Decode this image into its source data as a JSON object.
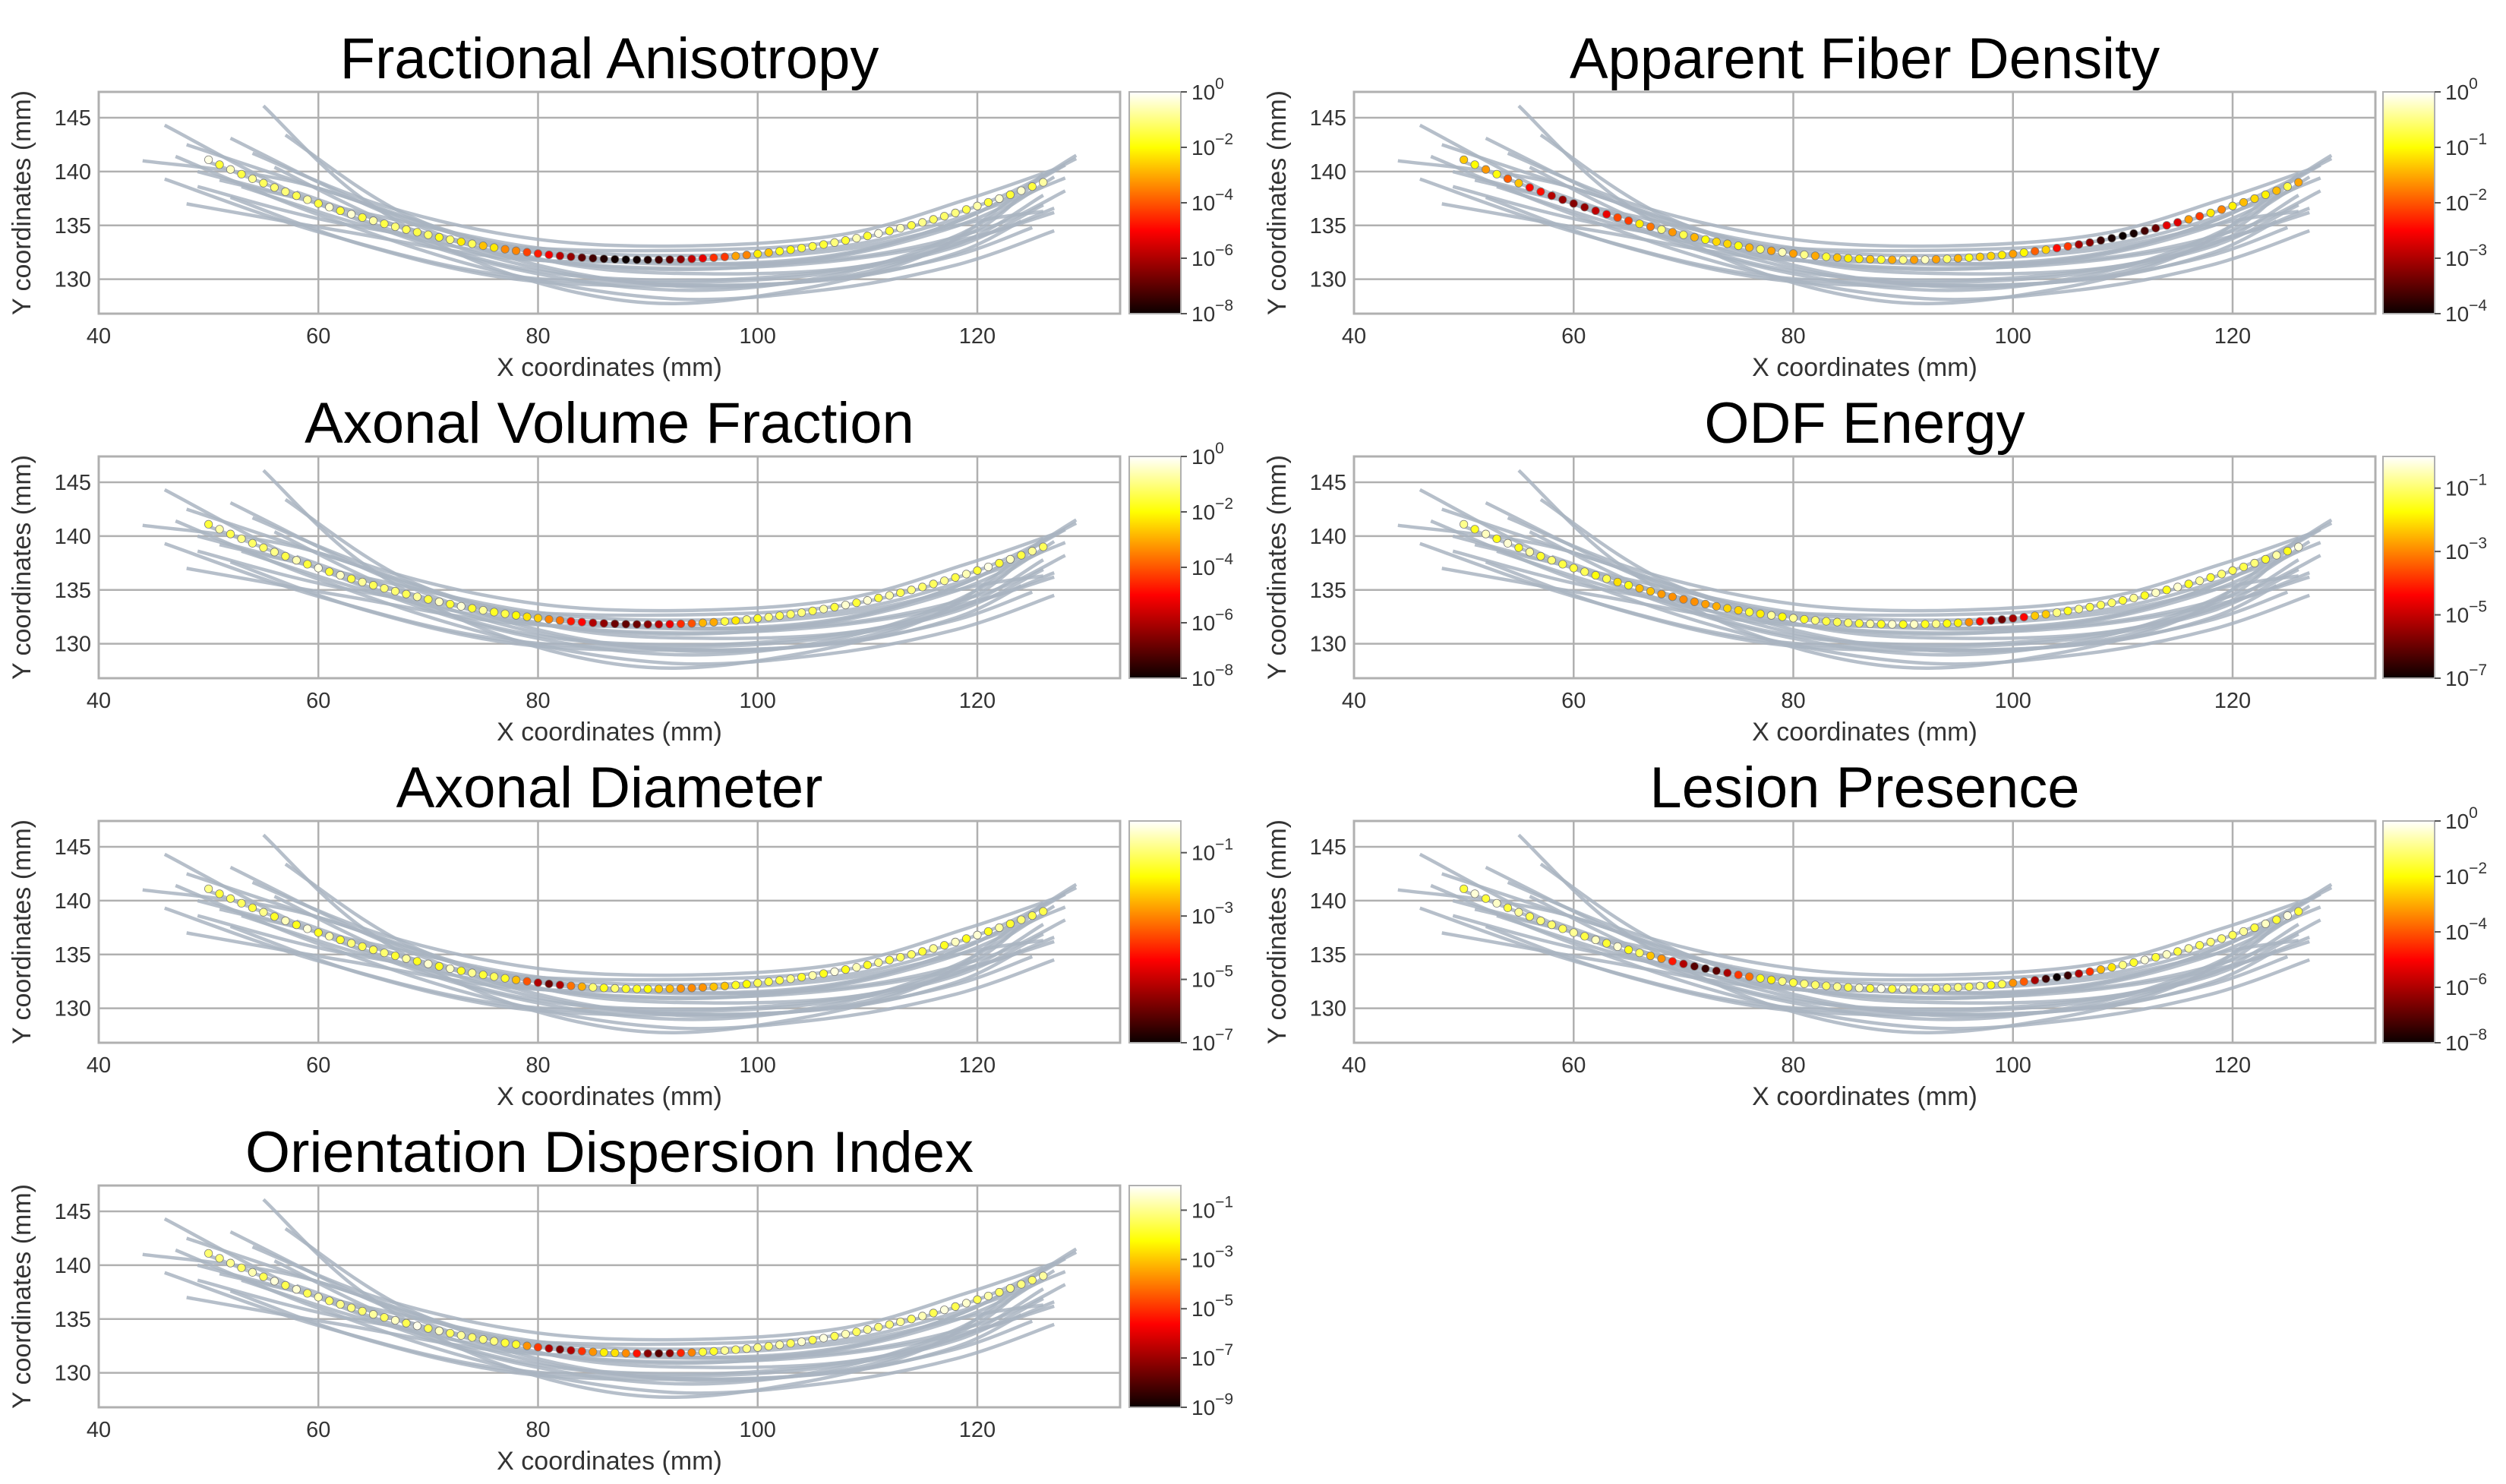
{
  "figure": {
    "panels": [
      "Fractional Anisotropy",
      "Apparent Fiber Density",
      "Axonal Volume Fraction",
      "ODF Energy",
      "Axonal Diameter",
      "Lesion Presence",
      "Orientation Dispersion Index"
    ]
  },
  "chart_data": [
    {
      "type": "scatter",
      "title": "Fractional Anisotropy",
      "xlabel": "X coordinates (mm)",
      "ylabel": "Y coordinates (mm)",
      "xlim": [
        40,
        133
      ],
      "ylim": [
        126.8,
        147.4
      ],
      "xticks": [
        "40",
        "60",
        "80",
        "100",
        "120"
      ],
      "yticks": [
        "130",
        "135",
        "140",
        "145"
      ],
      "colorbar": {
        "scale": "log",
        "cmap": "hot",
        "min_exp": -8,
        "max_exp": 0,
        "ticks": [
          {
            "base": "10",
            "exp": "0"
          },
          {
            "base": "10",
            "exp": "−2"
          },
          {
            "base": "10",
            "exp": "−4"
          },
          {
            "base": "10",
            "exp": "−6"
          },
          {
            "base": "10",
            "exp": "−8"
          }
        ]
      },
      "profile": {
        "x_start": 50,
        "x_end": 126,
        "n_points": 77,
        "low_regions": [
          [
            88,
            10,
            -8
          ]
        ]
      }
    },
    {
      "type": "scatter",
      "title": "Apparent Fiber Density",
      "xlabel": "X coordinates (mm)",
      "ylabel": "Y coordinates (mm)",
      "xlim": [
        40,
        133
      ],
      "ylim": [
        126.8,
        147.4
      ],
      "xticks": [
        "40",
        "60",
        "80",
        "100",
        "120"
      ],
      "yticks": [
        "130",
        "135",
        "140",
        "145"
      ],
      "colorbar": {
        "scale": "log",
        "cmap": "hot",
        "min_exp": -4,
        "max_exp": 0,
        "ticks": [
          {
            "base": "10",
            "exp": "0"
          },
          {
            "base": "10",
            "exp": "−1"
          },
          {
            "base": "10",
            "exp": "−2"
          },
          {
            "base": "10",
            "exp": "−3"
          },
          {
            "base": "10",
            "exp": "−4"
          }
        ]
      },
      "profile": {
        "x_start": 50,
        "x_end": 126,
        "n_points": 77,
        "low_regions": [
          [
            60,
            5,
            -3.3
          ],
          [
            110,
            6,
            -4
          ]
        ]
      }
    },
    {
      "type": "scatter",
      "title": "Axonal Volume Fraction",
      "xlabel": "X coordinates (mm)",
      "ylabel": "Y coordinates (mm)",
      "xlim": [
        40,
        133
      ],
      "ylim": [
        126.8,
        147.4
      ],
      "xticks": [
        "40",
        "60",
        "80",
        "100",
        "120"
      ],
      "yticks": [
        "130",
        "135",
        "140",
        "145"
      ],
      "colorbar": {
        "scale": "log",
        "cmap": "hot",
        "min_exp": -8,
        "max_exp": 0,
        "ticks": [
          {
            "base": "10",
            "exp": "0"
          },
          {
            "base": "10",
            "exp": "−2"
          },
          {
            "base": "10",
            "exp": "−4"
          },
          {
            "base": "10",
            "exp": "−6"
          },
          {
            "base": "10",
            "exp": "−8"
          }
        ]
      },
      "profile": {
        "x_start": 50,
        "x_end": 126,
        "n_points": 77,
        "low_regions": [
          [
            88,
            7,
            -7
          ]
        ]
      }
    },
    {
      "type": "scatter",
      "title": "ODF Energy",
      "xlabel": "X coordinates (mm)",
      "ylabel": "Y coordinates (mm)",
      "xlim": [
        40,
        133
      ],
      "ylim": [
        126.8,
        147.4
      ],
      "xticks": [
        "40",
        "60",
        "80",
        "100",
        "120"
      ],
      "yticks": [
        "130",
        "135",
        "140",
        "145"
      ],
      "colorbar": {
        "scale": "log",
        "cmap": "hot",
        "min_exp": -7,
        "max_exp": 0,
        "ticks": [
          {
            "base": "10",
            "exp": "−1"
          },
          {
            "base": "10",
            "exp": "−3"
          },
          {
            "base": "10",
            "exp": "−5"
          },
          {
            "base": "10",
            "exp": "−7"
          }
        ]
      },
      "profile": {
        "x_start": 50,
        "x_end": 126,
        "n_points": 77,
        "low_regions": [
          [
            99,
            3,
            -6
          ],
          [
            70,
            6,
            -3
          ]
        ]
      }
    },
    {
      "type": "scatter",
      "title": "Axonal Diameter",
      "xlabel": "X coordinates (mm)",
      "ylabel": "Y coordinates (mm)",
      "xlim": [
        40,
        133
      ],
      "ylim": [
        126.8,
        147.4
      ],
      "xticks": [
        "40",
        "60",
        "80",
        "100",
        "120"
      ],
      "yticks": [
        "130",
        "135",
        "140",
        "145"
      ],
      "colorbar": {
        "scale": "log",
        "cmap": "hot",
        "min_exp": -7,
        "max_exp": 0,
        "ticks": [
          {
            "base": "10",
            "exp": "−1"
          },
          {
            "base": "10",
            "exp": "−3"
          },
          {
            "base": "10",
            "exp": "−5"
          },
          {
            "base": "10",
            "exp": "−7"
          }
        ]
      },
      "profile": {
        "x_start": 50,
        "x_end": 126,
        "n_points": 77,
        "low_regions": [
          [
            81,
            2.5,
            -6
          ],
          [
            94,
            4,
            -3
          ]
        ]
      }
    },
    {
      "type": "scatter",
      "title": "Lesion Presence",
      "xlabel": "X coordinates (mm)",
      "ylabel": "Y coordinates (mm)",
      "xlim": [
        40,
        133
      ],
      "ylim": [
        126.8,
        147.4
      ],
      "xticks": [
        "40",
        "60",
        "80",
        "100",
        "120"
      ],
      "yticks": [
        "130",
        "135",
        "140",
        "145"
      ],
      "colorbar": {
        "scale": "log",
        "cmap": "hot",
        "min_exp": -8,
        "max_exp": 0,
        "ticks": [
          {
            "base": "10",
            "exp": "0"
          },
          {
            "base": "10",
            "exp": "−2"
          },
          {
            "base": "10",
            "exp": "−4"
          },
          {
            "base": "10",
            "exp": "−6"
          },
          {
            "base": "10",
            "exp": "−8"
          }
        ]
      },
      "profile": {
        "x_start": 50,
        "x_end": 126,
        "n_points": 77,
        "low_regions": [
          [
            72,
            4,
            -7.5
          ],
          [
            104,
            3.5,
            -8
          ]
        ]
      }
    },
    {
      "type": "scatter",
      "title": "Orientation Dispersion Index",
      "xlabel": "X coordinates (mm)",
      "ylabel": "Y coordinates (mm)",
      "xlim": [
        40,
        133
      ],
      "ylim": [
        126.8,
        147.4
      ],
      "xticks": [
        "40",
        "60",
        "80",
        "100",
        "120"
      ],
      "yticks": [
        "130",
        "135",
        "140",
        "145"
      ],
      "colorbar": {
        "scale": "log",
        "cmap": "hot",
        "min_exp": -9,
        "max_exp": 0,
        "ticks": [
          {
            "base": "10",
            "exp": "−1"
          },
          {
            "base": "10",
            "exp": "−3"
          },
          {
            "base": "10",
            "exp": "−5"
          },
          {
            "base": "10",
            "exp": "−7"
          },
          {
            "base": "10",
            "exp": "−9"
          }
        ]
      },
      "profile": {
        "x_start": 50,
        "x_end": 126,
        "n_points": 77,
        "low_regions": [
          [
            82,
            3,
            -7.5
          ],
          [
            91,
            3,
            -8
          ]
        ]
      }
    }
  ],
  "streamlines": {
    "x_range": [
      44,
      129
    ],
    "curves": [
      [
        [
          46,
          144.3
        ],
        [
          60,
          137.0
        ],
        [
          76,
          131.4
        ],
        [
          92,
          129.0
        ],
        [
          106,
          130.2
        ],
        [
          118,
          134.0
        ],
        [
          127,
          139.5
        ]
      ],
      [
        [
          48,
          142.5
        ],
        [
          62,
          137.8
        ],
        [
          78,
          132.8
        ],
        [
          92,
          131.4
        ],
        [
          106,
          132.0
        ],
        [
          118,
          135.3
        ],
        [
          128,
          140.6
        ]
      ],
      [
        [
          44,
          141.0
        ],
        [
          58,
          139.0
        ],
        [
          74,
          133.8
        ],
        [
          90,
          131.6
        ],
        [
          106,
          132.1
        ],
        [
          119,
          135.7
        ],
        [
          129,
          141.5
        ]
      ],
      [
        [
          49,
          140.0
        ],
        [
          62,
          136.5
        ],
        [
          78,
          132.2
        ],
        [
          92,
          130.9
        ],
        [
          106,
          131.9
        ],
        [
          118,
          134.9
        ],
        [
          126,
          138.6
        ]
      ],
      [
        [
          51,
          139.2
        ],
        [
          64,
          136.2
        ],
        [
          80,
          132.9
        ],
        [
          94,
          132.2
        ],
        [
          108,
          133.1
        ],
        [
          119,
          135.9
        ],
        [
          128,
          139.4
        ]
      ],
      [
        [
          48,
          137.0
        ],
        [
          62,
          134.5
        ],
        [
          78,
          131.9
        ],
        [
          94,
          131.8
        ],
        [
          108,
          132.8
        ],
        [
          120,
          135.4
        ],
        [
          126,
          136.3
        ]
      ],
      [
        [
          55,
          146.1
        ],
        [
          64,
          137.5
        ],
        [
          76,
          131.0
        ],
        [
          90,
          127.8
        ],
        [
          104,
          129.1
        ],
        [
          116,
          132.6
        ],
        [
          125,
          139.0
        ]
      ],
      [
        [
          52,
          143.1
        ],
        [
          66,
          136.2
        ],
        [
          80,
          131.3
        ],
        [
          94,
          129.3
        ],
        [
          108,
          130.3
        ],
        [
          119,
          133.6
        ],
        [
          127,
          136.2
        ]
      ],
      [
        [
          47,
          141.4
        ],
        [
          60,
          136.0
        ],
        [
          76,
          130.8
        ],
        [
          92,
          128.2
        ],
        [
          106,
          129.0
        ],
        [
          118,
          131.3
        ],
        [
          127,
          134.5
        ]
      ],
      [
        [
          50,
          140.9
        ],
        [
          64,
          135.5
        ],
        [
          78,
          131.1
        ],
        [
          92,
          129.9
        ],
        [
          106,
          130.7
        ],
        [
          118,
          133.2
        ],
        [
          126,
          137.8
        ]
      ],
      [
        [
          53,
          138.6
        ],
        [
          66,
          134.5
        ],
        [
          80,
          131.8
        ],
        [
          94,
          131.0
        ],
        [
          108,
          131.8
        ],
        [
          120,
          134.0
        ],
        [
          127,
          136.6
        ]
      ],
      [
        [
          56,
          140.4
        ],
        [
          68,
          134.6
        ],
        [
          82,
          130.6
        ],
        [
          96,
          129.4
        ],
        [
          108,
          130.2
        ],
        [
          118,
          132.2
        ],
        [
          125,
          134.8
        ]
      ],
      [
        [
          58,
          138.1
        ],
        [
          70,
          134.2
        ],
        [
          84,
          132.1
        ],
        [
          98,
          131.4
        ],
        [
          110,
          132.2
        ],
        [
          121,
          134.8
        ],
        [
          128,
          138.2
        ]
      ],
      [
        [
          49,
          138.6
        ],
        [
          62,
          135.2
        ],
        [
          78,
          133.0
        ],
        [
          94,
          132.7
        ],
        [
          108,
          133.6
        ],
        [
          120,
          136.8
        ],
        [
          129,
          141.2
        ]
      ],
      [
        [
          54,
          141.7
        ],
        [
          66,
          136.8
        ],
        [
          80,
          133.7
        ],
        [
          94,
          133.1
        ],
        [
          108,
          134.2
        ],
        [
          119,
          137.4
        ],
        [
          127,
          140.2
        ]
      ],
      [
        [
          46,
          139.3
        ],
        [
          60,
          134.4
        ],
        [
          76,
          130.5
        ],
        [
          92,
          129.7
        ],
        [
          106,
          130.5
        ],
        [
          118,
          133.0
        ],
        [
          126,
          136.9
        ]
      ],
      [
        [
          57,
          143.4
        ],
        [
          68,
          136.0
        ],
        [
          82,
          131.5
        ],
        [
          96,
          130.5
        ],
        [
          110,
          131.3
        ],
        [
          120,
          134.6
        ],
        [
          126,
          139.8
        ]
      ],
      [
        [
          52,
          137.6
        ],
        [
          64,
          133.2
        ],
        [
          78,
          130.0
        ],
        [
          94,
          129.4
        ],
        [
          108,
          130.1
        ],
        [
          118,
          132.4
        ],
        [
          124,
          135.4
        ]
      ]
    ]
  }
}
